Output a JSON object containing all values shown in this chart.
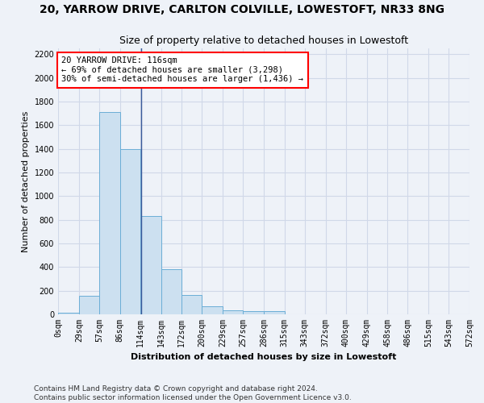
{
  "title_line1": "20, YARROW DRIVE, CARLTON COLVILLE, LOWESTOFT, NR33 8NG",
  "title_line2": "Size of property relative to detached houses in Lowestoft",
  "xlabel": "Distribution of detached houses by size in Lowestoft",
  "ylabel": "Number of detached properties",
  "bar_edges": [
    0,
    29,
    57,
    86,
    114,
    143,
    172,
    200,
    229,
    257,
    286,
    315,
    343,
    372,
    400,
    429,
    458,
    486,
    515,
    543,
    572
  ],
  "bar_heights": [
    15,
    155,
    1710,
    1400,
    835,
    385,
    165,
    65,
    35,
    28,
    28,
    0,
    0,
    0,
    0,
    0,
    0,
    0,
    0,
    0
  ],
  "bar_color": "#cce0f0",
  "bar_edge_color": "#6baed6",
  "grid_color": "#d0d8e8",
  "background_color": "#eef2f8",
  "vline_x": 116,
  "vline_color": "#3a5a9a",
  "annotation_text": "20 YARROW DRIVE: 116sqm\n← 69% of detached houses are smaller (3,298)\n30% of semi-detached houses are larger (1,436) →",
  "annotation_box_color": "white",
  "annotation_box_edge_color": "red",
  "ylim": [
    0,
    2250
  ],
  "yticks": [
    0,
    200,
    400,
    600,
    800,
    1000,
    1200,
    1400,
    1600,
    1800,
    2000,
    2200
  ],
  "footnote1": "Contains HM Land Registry data © Crown copyright and database right 2024.",
  "footnote2": "Contains public sector information licensed under the Open Government Licence v3.0.",
  "title_fontsize": 10,
  "subtitle_fontsize": 9,
  "axis_label_fontsize": 8,
  "tick_fontsize": 7,
  "annot_fontsize": 7.5,
  "footnote_fontsize": 6.5
}
